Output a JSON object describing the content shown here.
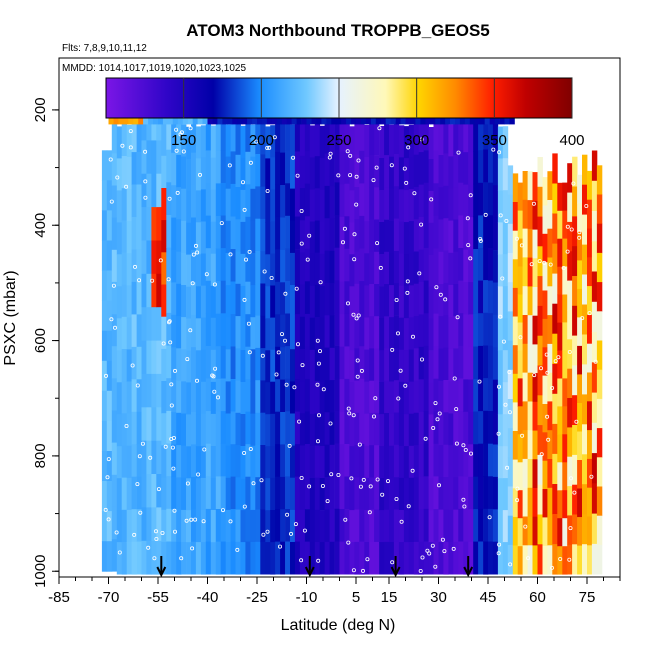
{
  "chart_data": {
    "type": "heatmap",
    "title": "ATOM3 Northbound TROPPB_GEOS5",
    "flights_label": "Flts: 7,8,9,10,11,12",
    "dates_label": "MMDD: 1014,1017,1019,1020,1023,1025",
    "xlabel": "Latitude (deg N)",
    "ylabel": "PSXC (mbar)",
    "xlim": [
      -85,
      85
    ],
    "ylim": [
      1010,
      110
    ],
    "x_ticks": [
      "-85",
      "-70",
      "-55",
      "-40",
      "-25",
      "-10",
      "5",
      "15",
      "30",
      "45",
      "60",
      "75"
    ],
    "x_tick_values": [
      -85,
      -70,
      -55,
      -40,
      -25,
      -10,
      5,
      15,
      30,
      45,
      60,
      75
    ],
    "y_ticks": [
      "200",
      "400",
      "600",
      "800",
      "1000"
    ],
    "y_tick_values": [
      200,
      400,
      600,
      800,
      1000
    ],
    "colorbar": {
      "min": 100,
      "max": 400,
      "tick_labels": [
        "150",
        "200",
        "250",
        "300",
        "350",
        "400"
      ],
      "tick_values": [
        150,
        200,
        250,
        300,
        350,
        400
      ]
    },
    "arrow_latitudes": [
      -54,
      -9,
      17,
      39
    ],
    "tropopause_field": [
      {
        "lat_min": -72,
        "lat_max": -52,
        "value": 222
      },
      {
        "lat_min": -52,
        "lat_max": -37,
        "value": 212
      },
      {
        "lat_min": -37,
        "lat_max": -24,
        "value": 202
      },
      {
        "lat_min": -24,
        "lat_max": -14,
        "value": 180
      },
      {
        "lat_min": -14,
        "lat_max": 0,
        "value": 150
      },
      {
        "lat_min": 0,
        "lat_max": 12,
        "value": 125
      },
      {
        "lat_min": 12,
        "lat_max": 27,
        "value": 140
      },
      {
        "lat_min": 27,
        "lat_max": 40,
        "value": 125
      },
      {
        "lat_min": 40,
        "lat_max": 48,
        "value": 175
      },
      {
        "lat_min": 48,
        "lat_max": 56,
        "value": 235
      },
      {
        "lat_min": 56,
        "lat_max": 66,
        "value": 295
      },
      {
        "lat_min": 66,
        "lat_max": 79,
        "value": 330
      }
    ]
  }
}
